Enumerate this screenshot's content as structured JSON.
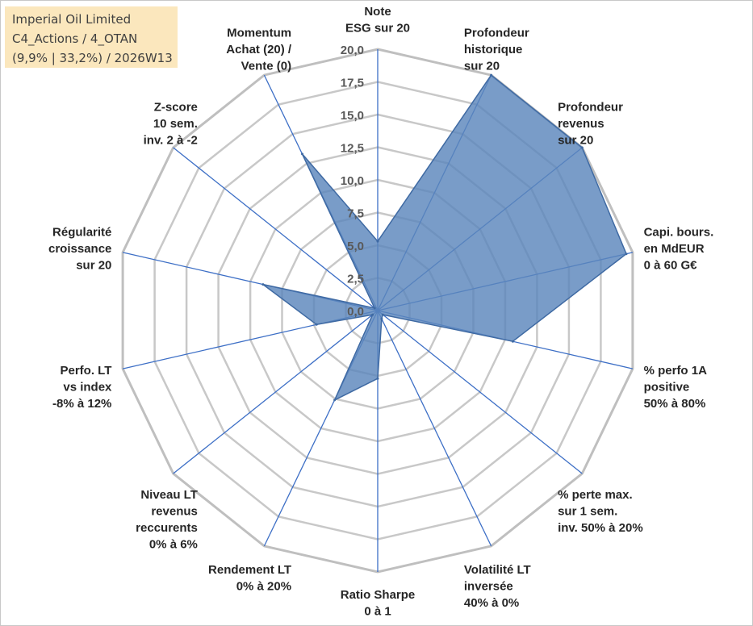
{
  "title_box": {
    "line1": "Imperial Oil Limited",
    "line2": "C4_Actions / 4_OTAN",
    "line3": "(9,9% | 33,2%) / 2026W13"
  },
  "colors": {
    "fill": "#5b86bc",
    "stroke": "#3f6aa3",
    "spoke": "#3d6fc6",
    "grid": "#bfbfbf",
    "inner_grid": "#c8c8c8",
    "title_bg": "#fbe7bd"
  },
  "chart_data": {
    "type": "radar",
    "title": "Imperial Oil Limited",
    "rmin": 0,
    "rmax": 20,
    "ticks": [
      0,
      2.5,
      5,
      7.5,
      10,
      12.5,
      15,
      17.5,
      20
    ],
    "tick_labels": [
      "0,0",
      "2,5",
      "5,0",
      "7,5",
      "10,0",
      "12,5",
      "15,0",
      "17,5",
      "20,0"
    ],
    "axes": [
      {
        "label": [
          "Note",
          "ESG sur 20"
        ],
        "value": 5.3
      },
      {
        "label": [
          "Profondeur",
          "historique",
          "sur 20"
        ],
        "value": 20
      },
      {
        "label": [
          "Profondeur",
          "revenus",
          "sur 20"
        ],
        "value": 20
      },
      {
        "label": [
          "Capi. bours.",
          "en MdEUR",
          "0 à 60 G€"
        ],
        "value": 19.5
      },
      {
        "label": [
          "% perfo 1A",
          "positive",
          "50% à 80%"
        ],
        "value": 10.6
      },
      {
        "label": [
          "% perte max.",
          "sur 1 sem.",
          "inv. 50% à 20%"
        ],
        "value": 0.5
      },
      {
        "label": [
          "Volatilité LT",
          "inversée",
          "40% à 0%"
        ],
        "value": 0.7
      },
      {
        "label": [
          "Ratio Sharpe",
          "0 à 1"
        ],
        "value": 5.2
      },
      {
        "label": [
          "Rendement LT",
          "0% à 20%"
        ],
        "value": 7.6
      },
      {
        "label": [
          "Niveau LT",
          "revenus",
          "reccurents",
          "0% à 6%"
        ],
        "value": 0.5
      },
      {
        "label": [
          "Perfo. LT",
          "vs index",
          "-8% à 12%"
        ],
        "value": 4.8
      },
      {
        "label": [
          "Régularité",
          "croissance",
          "sur 20"
        ],
        "value": 9.0
      },
      {
        "label": [
          "Z-score",
          "10 sem.",
          "inv. 2 à -2"
        ],
        "value": 0.3
      },
      {
        "label": [
          "Momentum",
          "Achat (20) /",
          "Vente (0)"
        ],
        "value": 13.3
      }
    ]
  }
}
